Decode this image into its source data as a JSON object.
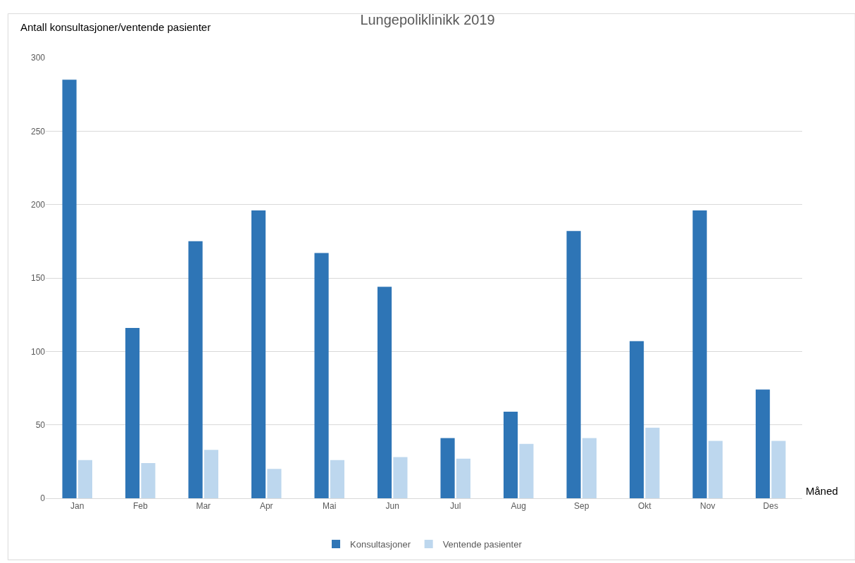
{
  "chart_data": {
    "type": "bar",
    "title": "Lungepoliklinikk 2019",
    "xlabel": "Måned",
    "ylabel": "Antall konsultasjoner/ventende pasienter",
    "categories": [
      "Jan",
      "Feb",
      "Mar",
      "Apr",
      "Mai",
      "Jun",
      "Jul",
      "Aug",
      "Sep",
      "Okt",
      "Nov",
      "Des"
    ],
    "series": [
      {
        "name": "Konsultasjoner",
        "color": "#2e75b6",
        "values": [
          285,
          116,
          175,
          196,
          167,
          144,
          41,
          59,
          182,
          107,
          196,
          74
        ]
      },
      {
        "name": "Ventende pasienter",
        "color": "#bdd7ee",
        "values": [
          26,
          24,
          33,
          20,
          26,
          28,
          27,
          37,
          41,
          48,
          39,
          39
        ]
      }
    ],
    "ylim": [
      0,
      300
    ],
    "yticks": [
      0,
      50,
      100,
      150,
      200,
      250,
      300
    ],
    "grid": "y",
    "legend": "bottom"
  }
}
